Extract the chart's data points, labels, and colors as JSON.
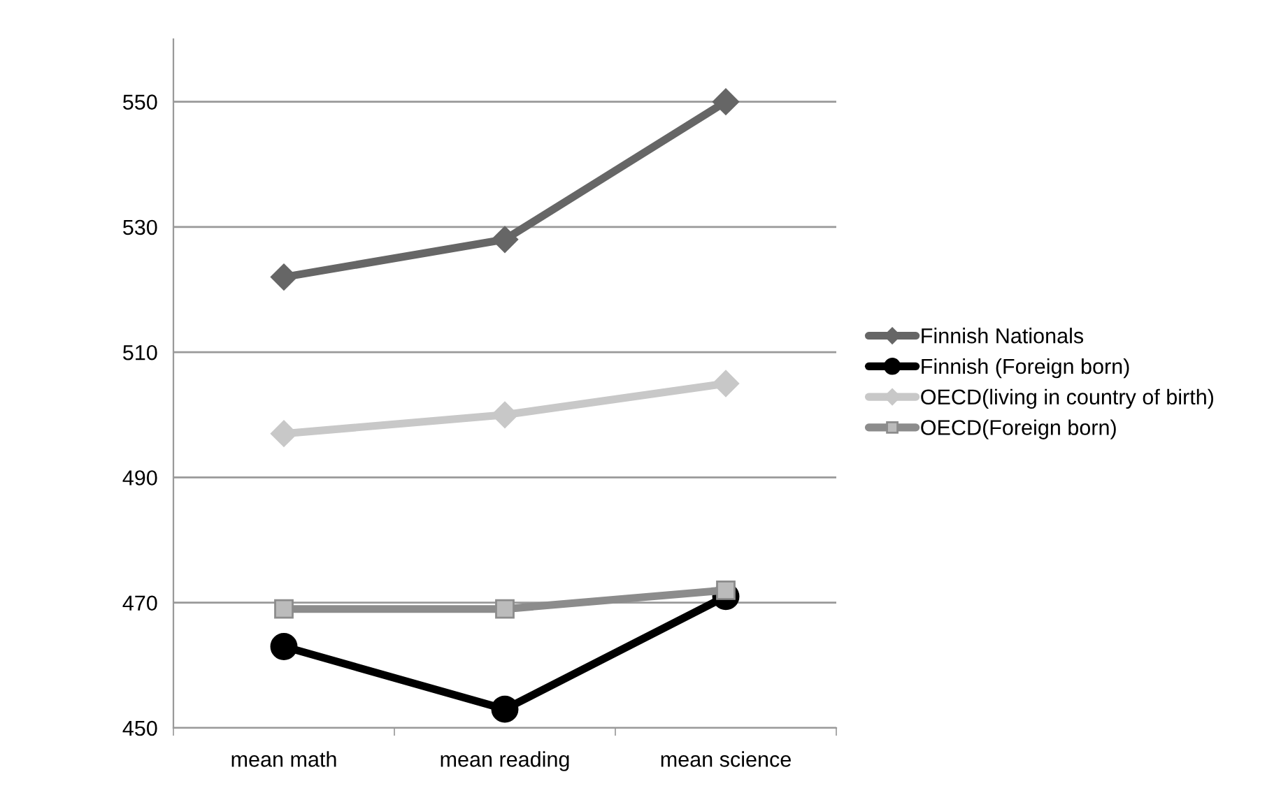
{
  "chart_data": {
    "type": "line",
    "categories": [
      "mean math",
      "mean reading",
      "mean science"
    ],
    "series": [
      {
        "name": "Finnish Nationals",
        "color": "#666666",
        "marker": "diamond",
        "values": [
          522,
          528,
          550
        ]
      },
      {
        "name": "Finnish (Foreign born)",
        "color": "#000000",
        "marker": "circle",
        "values": [
          463,
          453,
          471
        ]
      },
      {
        "name": "OECD(living in country of birth)",
        "color": "#c8c8c8",
        "marker": "diamond",
        "values": [
          497,
          500,
          505
        ]
      },
      {
        "name": "OECD(Foreign born)",
        "color": "#8c8c8c",
        "marker": "square",
        "values": [
          469,
          469,
          472
        ]
      }
    ],
    "ylim": [
      450,
      560
    ],
    "yticks": [
      450,
      470,
      490,
      510,
      530,
      550
    ],
    "grid": "y",
    "legend": "right"
  }
}
